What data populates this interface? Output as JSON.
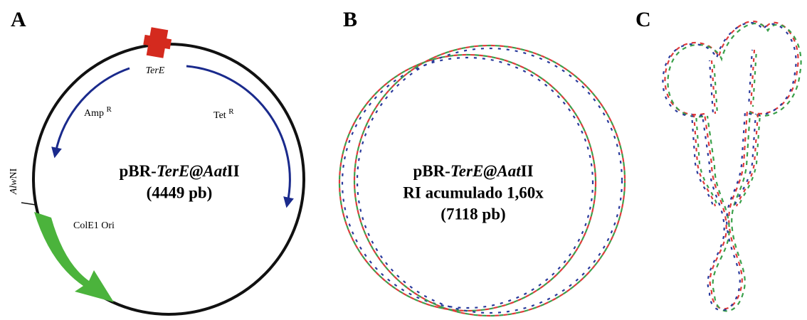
{
  "panels": [
    {
      "label": "A",
      "name": [
        "pBR-",
        "TerE@Aat",
        "II"
      ],
      "size": "(4449 pb)",
      "features": [
        {
          "label": "TerE"
        },
        {
          "label": "Amp",
          "sup": "R"
        },
        {
          "label": "Tet",
          "sup": "R"
        },
        {
          "label": "ColE1 Ori"
        }
      ],
      "site": [
        "Alw",
        "NI"
      ]
    },
    {
      "label": "B",
      "name": [
        "pBR-",
        "TerE@Aat",
        "II"
      ],
      "description": "RI acumulado 1,60x",
      "size": "(7118 pb)"
    },
    {
      "label": "C"
    }
  ]
}
